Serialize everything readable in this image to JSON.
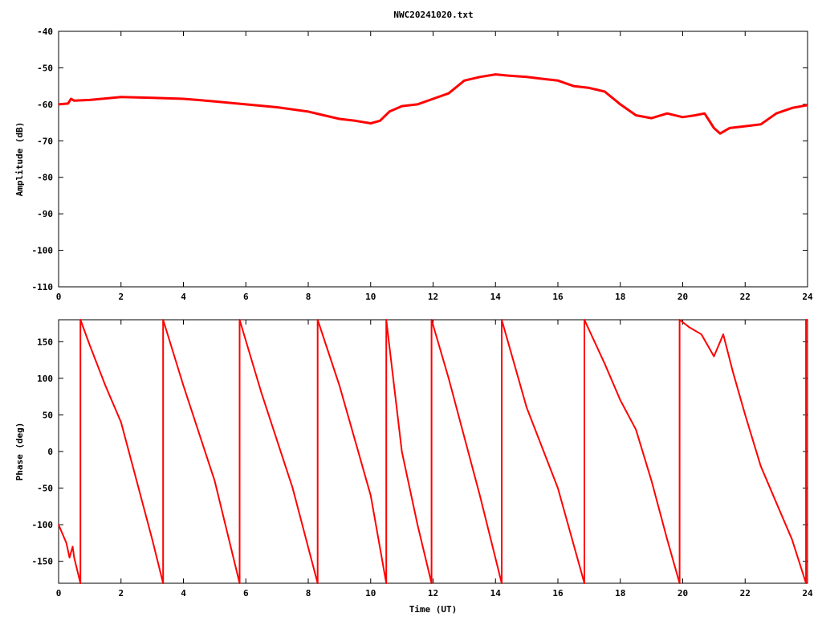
{
  "title": "NWC20241020.txt",
  "chart_data": [
    {
      "type": "line",
      "ylabel": "Amplitude (dB)",
      "xlabel": "",
      "xlim": [
        0,
        24
      ],
      "ylim": [
        -110,
        -40
      ],
      "x_ticks": [
        "0",
        "2",
        "4",
        "6",
        "8",
        "10",
        "12",
        "14",
        "16",
        "18",
        "20",
        "22",
        "24"
      ],
      "y_ticks": [
        "-110",
        "-100",
        "-90",
        "-80",
        "-70",
        "-60",
        "-50",
        "-40"
      ],
      "series": [
        {
          "color": "#ff0000",
          "x": [
            0,
            0.3,
            0.4,
            0.5,
            1,
            2,
            3,
            4,
            5,
            6,
            7,
            8,
            8.5,
            9,
            9.5,
            10,
            10.3,
            10.6,
            11,
            11.5,
            12,
            12.5,
            13,
            13.5,
            14,
            14.5,
            15,
            15.5,
            16,
            16.5,
            17,
            17.5,
            18,
            18.5,
            19,
            19.5,
            20,
            20.4,
            20.7,
            21,
            21.2,
            21.5,
            22,
            22.5,
            23,
            23.5,
            24
          ],
          "y": [
            -60,
            -59.8,
            -58.5,
            -59,
            -58.8,
            -58,
            -58.2,
            -58.5,
            -59.2,
            -60,
            -60.8,
            -62,
            -63,
            -64,
            -64.5,
            -65.2,
            -64.5,
            -62,
            -60.5,
            -60,
            -58.5,
            -57,
            -53.5,
            -52.5,
            -51.8,
            -52.2,
            -52.5,
            -53,
            -53.5,
            -55,
            -55.5,
            -56.5,
            -60,
            -63,
            -63.8,
            -62.5,
            -63.5,
            -63,
            -62.5,
            -66.5,
            -68,
            -66.5,
            -66,
            -65.5,
            -62.5,
            -61,
            -60.2
          ]
        }
      ]
    },
    {
      "type": "line",
      "ylabel": "Phase (deg)",
      "xlabel": "Time (UT)",
      "xlim": [
        0,
        24
      ],
      "ylim": [
        -180,
        180
      ],
      "x_ticks": [
        "0",
        "2",
        "4",
        "6",
        "8",
        "10",
        "12",
        "14",
        "16",
        "18",
        "20",
        "22",
        "24"
      ],
      "y_ticks": [
        "-150",
        "-100",
        "-50",
        "0",
        "50",
        "100",
        "150"
      ],
      "series": [
        {
          "color": "#ff0000",
          "x": [
            0,
            0.25,
            0.35,
            0.45,
            0.5,
            0.7,
            0.7,
            1.0,
            1.5,
            2.0,
            2.5,
            3.0,
            3.35,
            3.35,
            4.0,
            5.0,
            5.8,
            5.8,
            6.5,
            7.5,
            8.3,
            8.3,
            9.0,
            10.0,
            10.5,
            10.5,
            11.0,
            11.5,
            11.95,
            11.95,
            12.5,
            13.5,
            14.2,
            14.2,
            15.0,
            16.0,
            16.85,
            16.85,
            17.5,
            18.0,
            18.5,
            19.0,
            19.5,
            19.9,
            19.9,
            20.2,
            20.6,
            21.0,
            21.3,
            21.6,
            22.0,
            22.5,
            23.0,
            23.5,
            23.95,
            23.95,
            24.0
          ],
          "y": [
            -100,
            -125,
            -145,
            -130,
            -145,
            -180,
            180,
            145,
            90,
            40,
            -40,
            -120,
            -180,
            180,
            90,
            -40,
            -180,
            180,
            80,
            -50,
            -180,
            180,
            90,
            -60,
            -180,
            180,
            0,
            -100,
            -180,
            180,
            100,
            -60,
            -180,
            180,
            60,
            -50,
            -180,
            180,
            120,
            70,
            30,
            -40,
            -120,
            -180,
            180,
            170,
            160,
            130,
            160,
            110,
            50,
            -20,
            -70,
            -120,
            -180,
            180,
            180
          ]
        }
      ]
    }
  ]
}
